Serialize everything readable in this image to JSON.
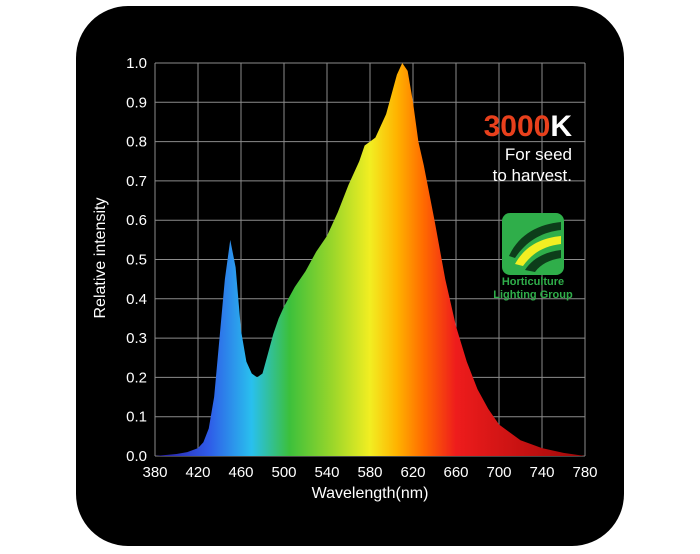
{
  "chart_data": {
    "type": "area",
    "xlabel": "Wavelength(nm)",
    "ylabel": "Relative intensity",
    "xlim": [
      380,
      780
    ],
    "ylim": [
      0,
      1.0
    ],
    "xticks": [
      "380",
      "420",
      "460",
      "500",
      "540",
      "580",
      "620",
      "660",
      "700",
      "740",
      "780"
    ],
    "yticks": [
      "0.0",
      "0.1",
      "0.2",
      "0.3",
      "0.4",
      "0.5",
      "0.6",
      "0.7",
      "0.8",
      "0.9",
      "1.0"
    ],
    "grid": true,
    "x": [
      380,
      400,
      410,
      420,
      425,
      430,
      435,
      440,
      445,
      450,
      455,
      460,
      465,
      470,
      475,
      480,
      485,
      490,
      495,
      500,
      510,
      520,
      530,
      540,
      550,
      560,
      570,
      575,
      580,
      585,
      590,
      595,
      600,
      605,
      610,
      615,
      620,
      625,
      630,
      640,
      650,
      660,
      670,
      680,
      690,
      700,
      720,
      740,
      760,
      780
    ],
    "values": [
      0.0,
      0.005,
      0.01,
      0.02,
      0.035,
      0.07,
      0.15,
      0.3,
      0.45,
      0.55,
      0.48,
      0.32,
      0.24,
      0.21,
      0.2,
      0.21,
      0.26,
      0.31,
      0.35,
      0.38,
      0.43,
      0.47,
      0.52,
      0.56,
      0.62,
      0.69,
      0.75,
      0.79,
      0.8,
      0.81,
      0.84,
      0.87,
      0.92,
      0.97,
      1.0,
      0.98,
      0.9,
      0.8,
      0.74,
      0.6,
      0.45,
      0.33,
      0.24,
      0.17,
      0.12,
      0.08,
      0.04,
      0.02,
      0.008,
      0.0
    ]
  },
  "annotation": {
    "cct_number": "3000",
    "cct_unit": "K",
    "note_line1": "For seed",
    "note_line2": "to harvest."
  },
  "logo": {
    "line1": "Horticulture",
    "line2": "Lighting Group"
  },
  "colors": {
    "background": "#000000",
    "grid": "#8c8c8c",
    "accent_number": "#e8401c",
    "logo_green": "#2fae4a",
    "spectrum_stops": [
      "#2a1aa0",
      "#2f5be8",
      "#29c0ee",
      "#3cc03c",
      "#9ad62a",
      "#f2ee22",
      "#ffb300",
      "#ff6a00",
      "#ee1c1c",
      "#a00808"
    ]
  }
}
